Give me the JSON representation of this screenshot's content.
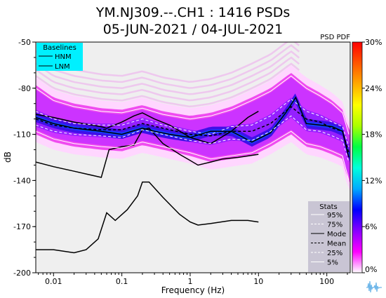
{
  "title_line1": "YM.NJ309.--.CH1 : 1416 PSDs",
  "title_line2": "05-JUN-2021 / 04-JUL-2021",
  "colorbar_label": "PSD PDF",
  "logo_icon": "seismometer-wave-icon",
  "chart_data": {
    "type": "heatmap",
    "xlabel": "Frequency (Hz)",
    "ylabel": "dB",
    "xscale": "log",
    "xlim": [
      0.0055,
      220
    ],
    "ylim": [
      -200,
      -50
    ],
    "xticks": [
      0.01,
      0.1,
      1,
      10,
      100
    ],
    "xtick_labels": [
      "0.01",
      "0.1",
      "1",
      "10",
      "100"
    ],
    "yticks": [
      -50,
      -80,
      -110,
      -140,
      -170,
      -200
    ],
    "ytick_labels": [
      "-50",
      "-80",
      "-110",
      "-140",
      "-170",
      "-200"
    ],
    "background_color": "#efefef",
    "colorbar": {
      "min": 0,
      "max": 30,
      "ticks": [
        0,
        6,
        12,
        18,
        24,
        30
      ],
      "tick_labels": [
        "0%",
        "6%",
        "12%",
        "18%",
        "24%",
        "30%"
      ],
      "colors": [
        "#ffffff",
        "#ff00ff",
        "#8800ff",
        "#0000ff",
        "#00aaff",
        "#00ffdd",
        "#00ff44",
        "#aaff00",
        "#ffff00",
        "#ffaa00",
        "#ff5500",
        "#ff0000"
      ]
    },
    "baselines_legend": {
      "title": "Baselines",
      "entries": [
        "HNM",
        "LNM"
      ],
      "background": "#00f0ff"
    },
    "stats_legend": {
      "title": "Stats",
      "entries": [
        {
          "label": "95%",
          "style": "solid",
          "color": "#ffffff"
        },
        {
          "label": "75%",
          "style": "dashed",
          "color": "#ffffff"
        },
        {
          "label": "Mode",
          "style": "solid",
          "color": "#000000"
        },
        {
          "label": "Mean",
          "style": "dashed",
          "color": "#000000"
        },
        {
          "label": "25%",
          "style": "dashed",
          "color": "#ffffff"
        },
        {
          "label": "5%",
          "style": "solid",
          "color": "#ffffff"
        }
      ],
      "background": "#c9c5d4"
    },
    "series": [
      {
        "name": "HNM",
        "color": "#000000",
        "style": "solid",
        "x": [
          0.0055,
          0.01,
          0.02,
          0.05,
          0.06,
          0.1,
          0.15,
          0.2,
          0.3,
          0.5,
          1,
          2,
          4,
          7,
          10
        ],
        "y": [
          -97,
          -99,
          -102,
          -105,
          -106,
          -102,
          -98,
          -96,
          -100,
          -104,
          -112,
          -116,
          -108,
          -99,
          -95
        ]
      },
      {
        "name": "LNM",
        "color": "#000000",
        "style": "solid",
        "x": [
          0.0055,
          0.01,
          0.02,
          0.05,
          0.065,
          0.1,
          0.15,
          0.2,
          0.25,
          0.4,
          0.7,
          1,
          1.3,
          2,
          3,
          5,
          10
        ],
        "y": [
          -128,
          -131,
          -134,
          -138,
          -120,
          -118,
          -117,
          -107,
          -106,
          -116,
          -123,
          -127,
          -130,
          -128,
          -126,
          -125,
          -123
        ]
      },
      {
        "name": "Lower baseline",
        "color": "#000000",
        "style": "solid",
        "x": [
          0.0055,
          0.01,
          0.02,
          0.03,
          0.045,
          0.06,
          0.08,
          0.12,
          0.17,
          0.2,
          0.25,
          0.4,
          0.7,
          1,
          1.3,
          2,
          4,
          7,
          10
        ],
        "y": [
          -185,
          -185,
          -187,
          -185,
          -178,
          -161,
          -166,
          -159,
          -150,
          -141,
          -141,
          -151,
          -162,
          -167,
          -169,
          -168,
          -166,
          -166,
          -167
        ]
      },
      {
        "name": "95%",
        "color": "#ffffff",
        "style": "solid",
        "x": [
          0.0055,
          0.01,
          0.02,
          0.05,
          0.1,
          0.2,
          0.4,
          1,
          2,
          4,
          8,
          15,
          30,
          50,
          80,
          120,
          170,
          210
        ],
        "y": [
          -80,
          -88,
          -92,
          -95,
          -96,
          -93,
          -97,
          -100,
          -98,
          -94,
          -88,
          -82,
          -72,
          -80,
          -85,
          -90,
          -96,
          -110
        ]
      },
      {
        "name": "75%",
        "color": "#ffffff",
        "style": "dashed",
        "x": [
          0.0055,
          0.01,
          0.02,
          0.05,
          0.1,
          0.2,
          0.4,
          1,
          2,
          4,
          8,
          15,
          30,
          50,
          80,
          120,
          170,
          210
        ],
        "y": [
          -95,
          -100,
          -103,
          -104,
          -104,
          -100,
          -104,
          -108,
          -110,
          -105,
          -104,
          -98,
          -87,
          -95,
          -98,
          -102,
          -105,
          -118
        ]
      },
      {
        "name": "Mode",
        "color": "#000000",
        "style": "solid",
        "x": [
          0.0055,
          0.01,
          0.02,
          0.05,
          0.1,
          0.2,
          0.3,
          0.5,
          1,
          2,
          4,
          6,
          8,
          15,
          25,
          35,
          50,
          80,
          120,
          170,
          210
        ],
        "y": [
          -99,
          -103,
          -106,
          -108,
          -110,
          -106,
          -108,
          -110,
          -112,
          -108,
          -108,
          -112,
          -115,
          -109,
          -96,
          -86,
          -103,
          -104,
          -105,
          -108,
          -125
        ]
      },
      {
        "name": "Mean",
        "color": "#000000",
        "style": "dashed",
        "x": [
          0.0055,
          0.01,
          0.02,
          0.05,
          0.1,
          0.2,
          0.4,
          1,
          2,
          4,
          8,
          15,
          30,
          50,
          80,
          120,
          170,
          210
        ],
        "y": [
          -100,
          -104,
          -106,
          -107,
          -107,
          -103,
          -106,
          -110,
          -111,
          -108,
          -108,
          -103,
          -92,
          -100,
          -102,
          -106,
          -108,
          -122
        ]
      },
      {
        "name": "25%",
        "color": "#ffffff",
        "style": "dashed",
        "x": [
          0.0055,
          0.01,
          0.02,
          0.05,
          0.1,
          0.2,
          0.4,
          1,
          2,
          4,
          8,
          15,
          30,
          50,
          80,
          120,
          170,
          210
        ],
        "y": [
          -104,
          -108,
          -110,
          -111,
          -112,
          -107,
          -110,
          -114,
          -116,
          -113,
          -114,
          -108,
          -98,
          -107,
          -108,
          -111,
          -114,
          -128
        ]
      },
      {
        "name": "5%",
        "color": "#ffffff",
        "style": "solid",
        "x": [
          0.0055,
          0.01,
          0.02,
          0.05,
          0.1,
          0.2,
          0.4,
          1,
          2,
          4,
          8,
          15,
          30,
          50,
          80,
          120,
          170,
          210
        ],
        "y": [
          -108,
          -113,
          -116,
          -118,
          -119,
          -115,
          -118,
          -122,
          -126,
          -124,
          -122,
          -116,
          -108,
          -116,
          -118,
          -121,
          -124,
          -140
        ]
      }
    ]
  }
}
